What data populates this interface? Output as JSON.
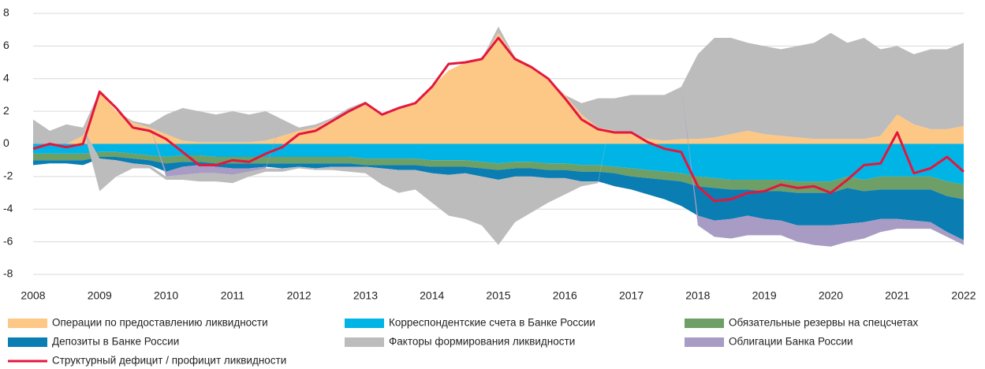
{
  "chart_data": {
    "type": "area",
    "x": [
      2008,
      2008.25,
      2008.5,
      2008.75,
      2009,
      2009.25,
      2009.5,
      2009.75,
      2010,
      2010.25,
      2010.5,
      2010.75,
      2011,
      2011.25,
      2011.5,
      2011.75,
      2012,
      2012.25,
      2012.5,
      2012.75,
      2013,
      2013.25,
      2013.5,
      2013.75,
      2014,
      2014.25,
      2014.5,
      2014.75,
      2015,
      2015.25,
      2015.5,
      2015.75,
      2016,
      2016.25,
      2016.5,
      2016.75,
      2017,
      2017.25,
      2017.5,
      2017.75,
      2018,
      2018.25,
      2018.5,
      2018.75,
      2019,
      2019.25,
      2019.5,
      2019.75,
      2020,
      2020.25,
      2020.5,
      2020.75,
      2021,
      2021.25,
      2021.5,
      2021.75,
      2022
    ],
    "xlim": [
      2008,
      2022
    ],
    "xticks": [
      2008,
      2009,
      2010,
      2011,
      2012,
      2013,
      2014,
      2015,
      2016,
      2017,
      2018,
      2019,
      2020,
      2021,
      2022
    ],
    "ylim": [
      -8,
      8
    ],
    "yticks": [
      -8,
      -6,
      -4,
      -2,
      0,
      2,
      4,
      6,
      8
    ],
    "grid": true,
    "series": [
      {
        "name": "Операции по предоставлению ликвидности",
        "color": "#fdc886",
        "values": [
          0,
          0,
          0,
          0.5,
          3.2,
          2.0,
          1.3,
          1.0,
          0.6,
          0.2,
          0.1,
          0.1,
          0.1,
          0.1,
          0.2,
          0.5,
          0.8,
          1.0,
          1.5,
          2.0,
          2.5,
          1.8,
          2.2,
          2.5,
          3.5,
          4.5,
          5.0,
          5.2,
          6.8,
          5.3,
          4.8,
          4.0,
          3.0,
          1.8,
          1.0,
          0.8,
          0.6,
          0.3,
          0.2,
          0.3,
          0.3,
          0.4,
          0.6,
          0.8,
          0.6,
          0.5,
          0.4,
          0.3,
          0.3,
          0.3,
          0.3,
          0.5,
          1.8,
          1.2,
          0.9,
          0.9,
          1.1
        ]
      },
      {
        "name": "Корреспондентские счета в Банке России",
        "color": "#00b5e6",
        "values": [
          -0.6,
          -0.6,
          -0.6,
          -0.6,
          -0.5,
          -0.5,
          -0.6,
          -0.7,
          -0.8,
          -0.7,
          -0.7,
          -0.8,
          -0.8,
          -0.8,
          -0.8,
          -0.8,
          -0.8,
          -0.8,
          -0.8,
          -0.8,
          -0.9,
          -0.9,
          -0.9,
          -0.9,
          -1.0,
          -1.0,
          -1.0,
          -1.1,
          -1.2,
          -1.1,
          -1.1,
          -1.2,
          -1.2,
          -1.3,
          -1.3,
          -1.4,
          -1.5,
          -1.6,
          -1.7,
          -1.8,
          -2.0,
          -2.1,
          -2.2,
          -2.2,
          -2.2,
          -2.2,
          -2.3,
          -2.3,
          -2.3,
          -2.0,
          -2.2,
          -2.0,
          -2.0,
          -2.0,
          -2.0,
          -2.3,
          -2.5
        ]
      },
      {
        "name": "Обязательные резервы на спецсчетах",
        "color": "#6e9f66",
        "values": [
          -0.4,
          -0.4,
          -0.4,
          -0.4,
          -0.3,
          -0.3,
          -0.3,
          -0.3,
          -0.4,
          -0.4,
          -0.4,
          -0.4,
          -0.4,
          -0.4,
          -0.4,
          -0.4,
          -0.4,
          -0.4,
          -0.4,
          -0.4,
          -0.4,
          -0.4,
          -0.4,
          -0.4,
          -0.4,
          -0.4,
          -0.4,
          -0.4,
          -0.4,
          -0.4,
          -0.4,
          -0.4,
          -0.4,
          -0.4,
          -0.4,
          -0.4,
          -0.5,
          -0.5,
          -0.5,
          -0.5,
          -0.6,
          -0.6,
          -0.6,
          -0.6,
          -0.7,
          -0.7,
          -0.7,
          -0.7,
          -0.7,
          -0.7,
          -0.7,
          -0.8,
          -0.8,
          -0.8,
          -0.8,
          -0.9,
          -0.9
        ]
      },
      {
        "name": "Депозиты в Банке России",
        "color": "#0a7db2",
        "values": [
          -0.3,
          -0.2,
          -0.2,
          -0.3,
          -0.1,
          -0.2,
          -0.3,
          -0.3,
          -0.5,
          -0.3,
          -0.2,
          -0.2,
          -0.3,
          -0.3,
          -0.2,
          -0.3,
          -0.2,
          -0.3,
          -0.2,
          -0.2,
          -0.1,
          -0.2,
          -0.3,
          -0.3,
          -0.4,
          -0.5,
          -0.4,
          -0.5,
          -0.6,
          -0.5,
          -0.5,
          -0.5,
          -0.5,
          -0.6,
          -0.6,
          -0.8,
          -0.8,
          -1.0,
          -1.2,
          -1.5,
          -1.8,
          -2.0,
          -1.8,
          -1.6,
          -1.7,
          -1.8,
          -2.0,
          -2.0,
          -2.0,
          -2.2,
          -1.9,
          -1.8,
          -1.8,
          -1.9,
          -2.0,
          -2.2,
          -2.5
        ]
      },
      {
        "name": "Факторы формирования ликвидности",
        "color": "#bcbcbc",
        "values": [
          1.5,
          0.8,
          1.2,
          0.5,
          0,
          0,
          0.1,
          0.2,
          1.2,
          2.0,
          1.9,
          1.7,
          1.9,
          1.7,
          1.8,
          1.0,
          0.2,
          0.2,
          0.1,
          0.2,
          0.1,
          0,
          0,
          0,
          0,
          0,
          0,
          0,
          0.4,
          0,
          0,
          0,
          0,
          0.7,
          1.8,
          2.0,
          2.4,
          2.7,
          2.8,
          3.2,
          5.2,
          6.1,
          5.9,
          5.4,
          5.4,
          5.3,
          5.6,
          5.9,
          6.5,
          5.9,
          6.2,
          5.3,
          4.2,
          4.3,
          4.9,
          4.9,
          5.1
        ]
      },
      {
        "name": "Облигации Банка России",
        "color": "#a89cc4",
        "values": [
          0,
          0,
          0,
          0,
          0,
          0,
          0,
          0,
          -0.3,
          -0.5,
          -0.5,
          -0.4,
          -0.4,
          -0.2,
          -0.1,
          0,
          0,
          0,
          0,
          0,
          0,
          0,
          0,
          0,
          0,
          0,
          0,
          0,
          0,
          0,
          0,
          0,
          0,
          0,
          0,
          0,
          0,
          0,
          0,
          0,
          -0.6,
          -1.0,
          -1.2,
          -1.2,
          -1.0,
          -0.9,
          -1.0,
          -1.2,
          -1.3,
          -1.1,
          -1.0,
          -0.8,
          -0.6,
          -0.5,
          -0.4,
          -0.3,
          -0.3
        ]
      },
      {
        "name": "Структурный дефицит / профицит ликвидности",
        "color": "#e3173e",
        "type": "line",
        "values": [
          -0.3,
          0.0,
          -0.2,
          0.0,
          3.2,
          2.2,
          1.0,
          0.8,
          0.3,
          -0.5,
          -1.3,
          -1.3,
          -1.0,
          -1.1,
          -0.6,
          -0.2,
          0.6,
          0.8,
          1.4,
          2.0,
          2.5,
          1.8,
          2.2,
          2.5,
          3.5,
          4.9,
          5.0,
          5.2,
          6.5,
          5.2,
          4.7,
          4.0,
          2.8,
          1.5,
          0.9,
          0.7,
          0.7,
          0.1,
          -0.3,
          -0.5,
          -2.6,
          -3.5,
          -3.4,
          -3.0,
          -2.9,
          -2.5,
          -2.7,
          -2.6,
          -3.0,
          -2.2,
          -1.3,
          -1.2,
          0.7,
          -1.8,
          -1.5,
          -0.8,
          -1.7
        ]
      },
      {
        "color": "#bcbcbc",
        "values": [
          0,
          0,
          0,
          0,
          -2.0,
          -1.0,
          -0.3,
          -0.2,
          -0.2,
          -0.3,
          -0.5,
          -0.5,
          -0.5,
          -0.3,
          -0.2,
          -0.2,
          -0.1,
          -0.1,
          -0.2,
          -0.3,
          -0.4,
          -1.0,
          -1.4,
          -1.2,
          -1.8,
          -2.5,
          -2.8,
          -3.0,
          -4.0,
          -2.8,
          -2.2,
          -1.5,
          -1.0,
          -0.3,
          -0.1,
          0,
          0,
          0,
          0,
          0,
          0,
          0,
          0,
          0,
          0,
          0,
          0,
          0,
          0,
          0,
          0,
          0,
          0,
          0,
          0,
          0,
          0
        ]
      }
    ]
  }
}
